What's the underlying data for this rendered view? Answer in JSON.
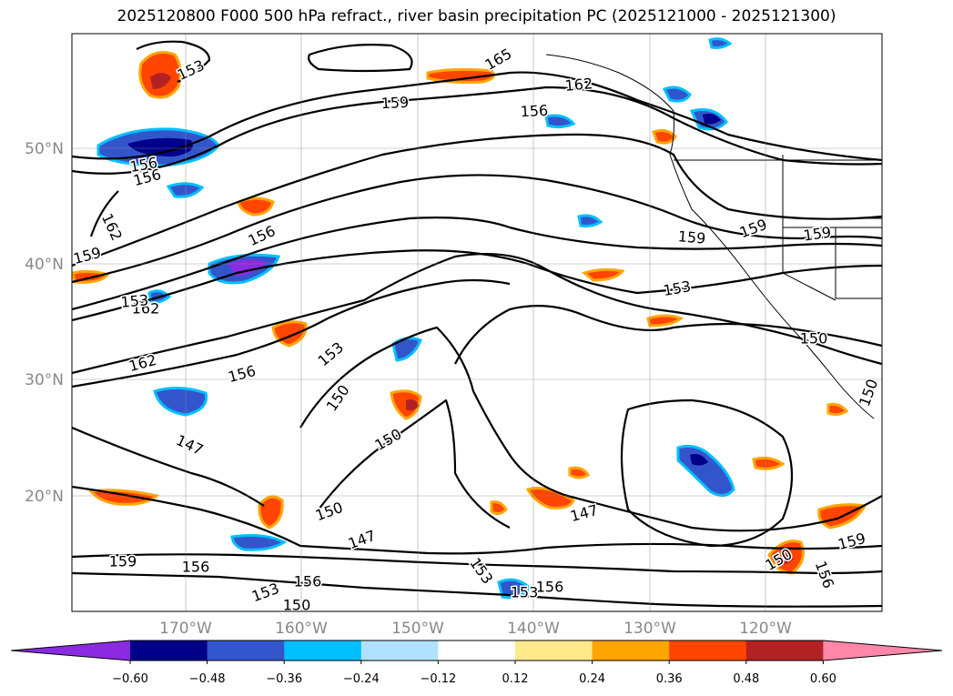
{
  "title": "2025120800 F000 500 hPa refract., river basin precipitation PC (2025121000 - 2025121300)",
  "lat_ticks": [
    "50°N",
    "40°N",
    "30°N",
    "20°N"
  ],
  "lon_ticks": [
    "170°W",
    "160°W",
    "150°W",
    "140°W",
    "130°W",
    "120°W"
  ],
  "colorbar": {
    "colors": [
      "#8a2be2",
      "#00008b",
      "#3355cc",
      "#00bfff",
      "#b0e2ff",
      "#ffffff",
      "#ffe98a",
      "#ffa500",
      "#ff4500",
      "#b22222",
      "#ff88aa"
    ],
    "tick_labels": [
      "−0.60",
      "−0.48",
      "−0.36",
      "−0.24",
      "−0.12",
      "0.12",
      "0.24",
      "0.36",
      "0.48",
      "0.60"
    ]
  },
  "contour_labels": [
    "153",
    "165",
    "162",
    "159",
    "156",
    "156",
    "156",
    "162",
    "159",
    "156",
    "159",
    "159",
    "159",
    "153",
    "162",
    "150",
    "153",
    "162",
    "156",
    "150",
    "150",
    "147",
    "150",
    "153",
    "147",
    "147",
    "159",
    "156",
    "153",
    "156",
    "150",
    "153",
    "156",
    "153",
    "150",
    "159",
    "156",
    "150"
  ]
}
